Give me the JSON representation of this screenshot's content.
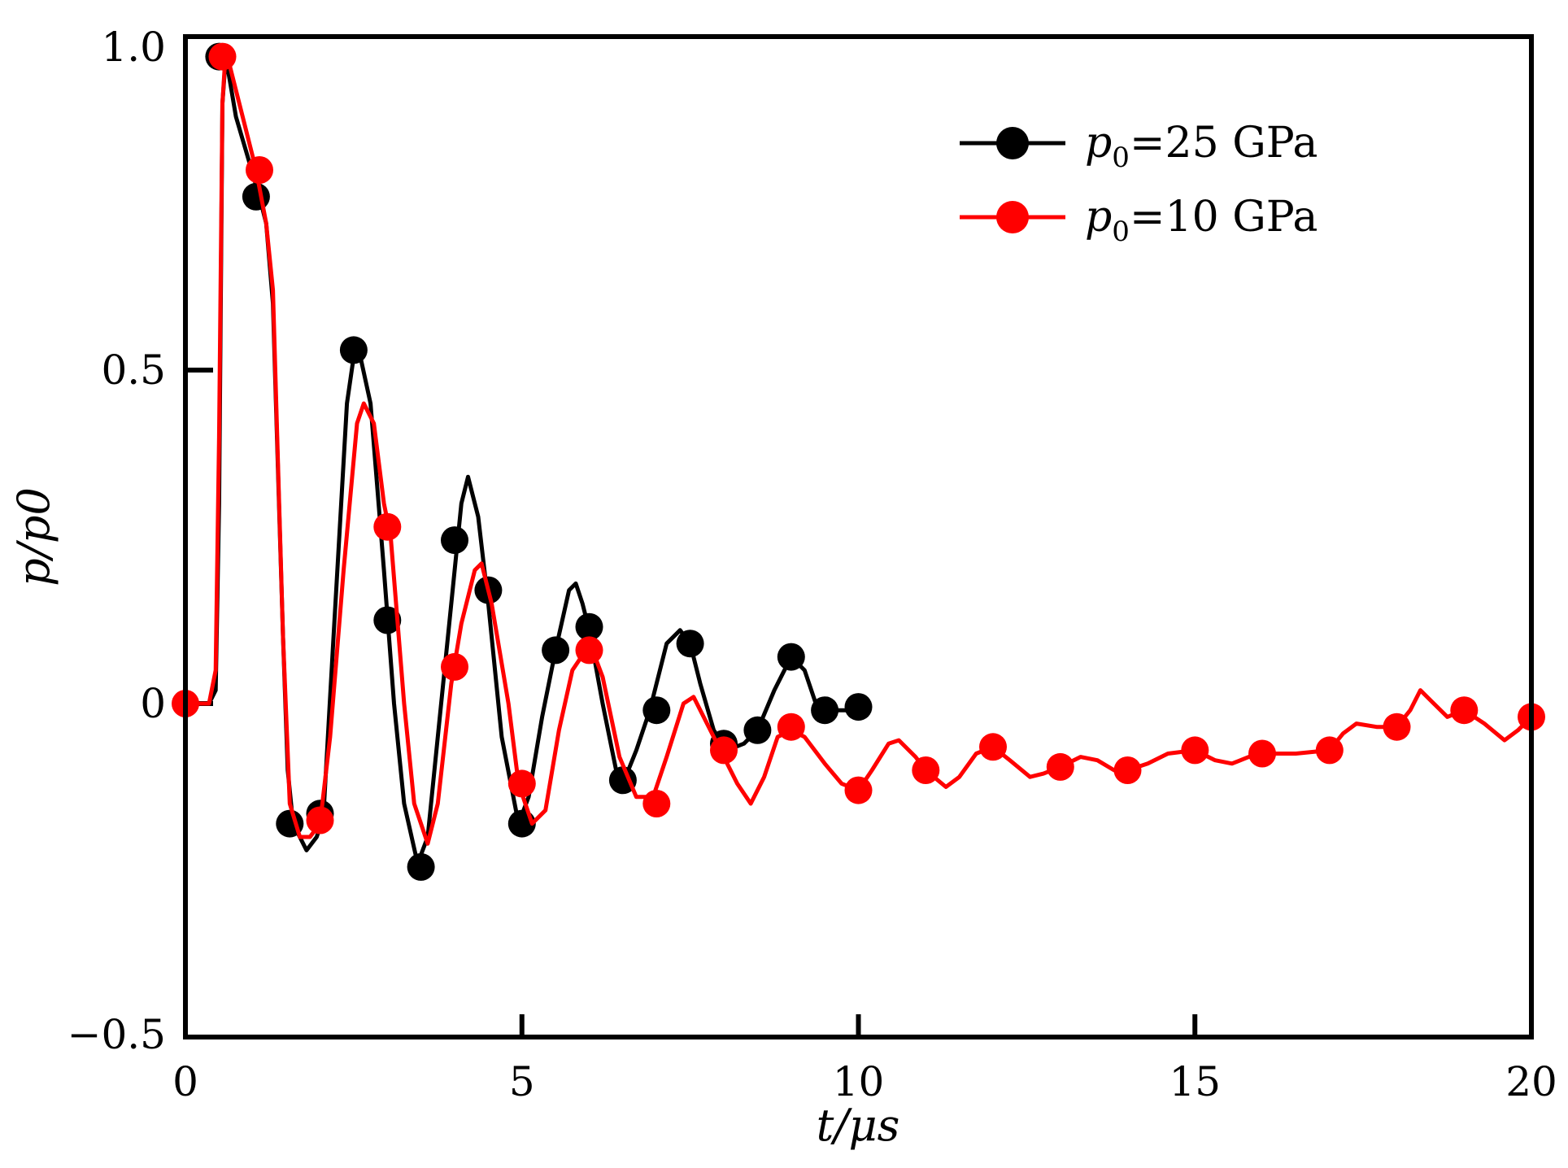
{
  "chart_data": {
    "type": "line",
    "xlabel": "t/μs",
    "ylabel": "p/p0",
    "xlim": [
      0,
      20
    ],
    "ylim": [
      -0.5,
      1.0
    ],
    "x_ticks": [
      0,
      5,
      10,
      15,
      20
    ],
    "x_tick_labels": [
      "0",
      "5",
      "10",
      "15",
      "20"
    ],
    "y_ticks": [
      -0.5,
      0,
      0.5,
      1.0
    ],
    "y_tick_labels": [
      "−0.5",
      "0",
      "0.5",
      "1.0"
    ],
    "legend_position": "top-right",
    "grid": false,
    "series": [
      {
        "name": "p0=25 GPa",
        "name_main": "p",
        "name_sub": "0",
        "name_rest": "=25 GPa",
        "color": "#000000",
        "line": [
          [
            0,
            0
          ],
          [
            0.35,
            0
          ],
          [
            0.45,
            0.02
          ],
          [
            0.5,
            0.3
          ],
          [
            0.55,
            0.9
          ],
          [
            0.6,
            0.97
          ],
          [
            0.75,
            0.88
          ],
          [
            1.1,
            0.76
          ],
          [
            1.2,
            0.72
          ],
          [
            1.3,
            0.6
          ],
          [
            1.45,
            0.1
          ],
          [
            1.52,
            -0.1
          ],
          [
            1.6,
            -0.18
          ],
          [
            1.8,
            -0.22
          ],
          [
            1.95,
            -0.2
          ],
          [
            2.05,
            -0.17
          ],
          [
            2.2,
            0.1
          ],
          [
            2.4,
            0.45
          ],
          [
            2.5,
            0.52
          ],
          [
            2.6,
            0.52
          ],
          [
            2.75,
            0.45
          ],
          [
            2.95,
            0.2
          ],
          [
            3.1,
            0.0
          ],
          [
            3.25,
            -0.15
          ],
          [
            3.45,
            -0.24
          ],
          [
            3.6,
            -0.2
          ],
          [
            3.75,
            -0.05
          ],
          [
            3.95,
            0.15
          ],
          [
            4.1,
            0.3
          ],
          [
            4.2,
            0.34
          ],
          [
            4.35,
            0.28
          ],
          [
            4.5,
            0.15
          ],
          [
            4.7,
            -0.05
          ],
          [
            4.95,
            -0.18
          ],
          [
            5.1,
            -0.14
          ],
          [
            5.3,
            -0.02
          ],
          [
            5.5,
            0.08
          ],
          [
            5.7,
            0.17
          ],
          [
            5.8,
            0.18
          ],
          [
            5.9,
            0.15
          ],
          [
            6.0,
            0.11
          ],
          [
            6.2,
            0.0
          ],
          [
            6.4,
            -0.1
          ],
          [
            6.5,
            -0.12
          ],
          [
            6.7,
            -0.07
          ],
          [
            6.9,
            -0.01
          ],
          [
            7.15,
            0.09
          ],
          [
            7.35,
            0.11
          ],
          [
            7.5,
            0.09
          ],
          [
            7.65,
            0.03
          ],
          [
            7.85,
            -0.04
          ],
          [
            8.05,
            -0.07
          ],
          [
            8.3,
            -0.06
          ],
          [
            8.5,
            -0.04
          ],
          [
            8.75,
            0.02
          ],
          [
            9.0,
            0.07
          ],
          [
            9.2,
            0.05
          ],
          [
            9.4,
            -0.01
          ],
          [
            9.6,
            -0.01
          ],
          [
            10.0,
            -0.01
          ]
        ],
        "markers": [
          [
            0.5,
            0.97
          ],
          [
            1.05,
            0.76
          ],
          [
            1.55,
            -0.18
          ],
          [
            2.0,
            -0.165
          ],
          [
            2.5,
            0.53
          ],
          [
            3.0,
            0.125
          ],
          [
            3.5,
            -0.245
          ],
          [
            4.0,
            0.245
          ],
          [
            4.5,
            0.17
          ],
          [
            5.0,
            -0.18
          ],
          [
            5.5,
            0.08
          ],
          [
            6.0,
            0.115
          ],
          [
            6.5,
            -0.115
          ],
          [
            7.0,
            -0.01
          ],
          [
            7.5,
            0.09
          ],
          [
            8.0,
            -0.06
          ],
          [
            8.5,
            -0.04
          ],
          [
            9.0,
            0.07
          ],
          [
            9.5,
            -0.01
          ],
          [
            10.0,
            -0.005
          ]
        ]
      },
      {
        "name": "p0=10 GPa",
        "name_main": "p",
        "name_sub": "0",
        "name_rest": "=10 GPa",
        "color": "#ff0000",
        "line": [
          [
            0,
            0
          ],
          [
            0.35,
            0
          ],
          [
            0.45,
            0.05
          ],
          [
            0.5,
            0.4
          ],
          [
            0.55,
            0.9
          ],
          [
            0.6,
            0.98
          ],
          [
            0.8,
            0.9
          ],
          [
            1.05,
            0.8
          ],
          [
            1.2,
            0.72
          ],
          [
            1.3,
            0.62
          ],
          [
            1.45,
            0.1
          ],
          [
            1.55,
            -0.15
          ],
          [
            1.7,
            -0.2
          ],
          [
            1.85,
            -0.2
          ],
          [
            2.0,
            -0.18
          ],
          [
            2.15,
            -0.05
          ],
          [
            2.35,
            0.2
          ],
          [
            2.55,
            0.42
          ],
          [
            2.65,
            0.45
          ],
          [
            2.8,
            0.42
          ],
          [
            2.95,
            0.3
          ],
          [
            3.05,
            0.25
          ],
          [
            3.25,
            0.0
          ],
          [
            3.4,
            -0.15
          ],
          [
            3.6,
            -0.21
          ],
          [
            3.75,
            -0.15
          ],
          [
            3.95,
            0.03
          ],
          [
            4.1,
            0.12
          ],
          [
            4.3,
            0.2
          ],
          [
            4.4,
            0.21
          ],
          [
            4.55,
            0.15
          ],
          [
            4.8,
            0.0
          ],
          [
            4.95,
            -0.12
          ],
          [
            5.15,
            -0.18
          ],
          [
            5.35,
            -0.16
          ],
          [
            5.55,
            -0.04
          ],
          [
            5.75,
            0.05
          ],
          [
            5.95,
            0.08
          ],
          [
            6.05,
            0.08
          ],
          [
            6.2,
            0.04
          ],
          [
            6.45,
            -0.08
          ],
          [
            6.7,
            -0.14
          ],
          [
            6.95,
            -0.14
          ],
          [
            7.15,
            -0.08
          ],
          [
            7.4,
            0.0
          ],
          [
            7.55,
            0.01
          ],
          [
            7.7,
            -0.02
          ],
          [
            7.95,
            -0.07
          ],
          [
            8.2,
            -0.12
          ],
          [
            8.4,
            -0.15
          ],
          [
            8.6,
            -0.11
          ],
          [
            8.8,
            -0.05
          ],
          [
            9.0,
            -0.04
          ],
          [
            9.2,
            -0.05
          ],
          [
            9.5,
            -0.09
          ],
          [
            9.75,
            -0.12
          ],
          [
            10.0,
            -0.13
          ],
          [
            10.2,
            -0.1
          ],
          [
            10.45,
            -0.06
          ],
          [
            10.6,
            -0.055
          ],
          [
            10.85,
            -0.08
          ],
          [
            11.0,
            -0.1
          ],
          [
            11.3,
            -0.125
          ],
          [
            11.5,
            -0.11
          ],
          [
            11.75,
            -0.075
          ],
          [
            12.0,
            -0.065
          ],
          [
            12.25,
            -0.085
          ],
          [
            12.55,
            -0.11
          ],
          [
            12.75,
            -0.105
          ],
          [
            13.0,
            -0.095
          ],
          [
            13.3,
            -0.08
          ],
          [
            13.55,
            -0.085
          ],
          [
            13.8,
            -0.1
          ],
          [
            14.0,
            -0.1
          ],
          [
            14.3,
            -0.09
          ],
          [
            14.6,
            -0.075
          ],
          [
            15.0,
            -0.07
          ],
          [
            15.3,
            -0.085
          ],
          [
            15.55,
            -0.09
          ],
          [
            15.8,
            -0.08
          ],
          [
            16.0,
            -0.075
          ],
          [
            16.5,
            -0.075
          ],
          [
            17.0,
            -0.07
          ],
          [
            17.2,
            -0.045
          ],
          [
            17.4,
            -0.03
          ],
          [
            17.7,
            -0.035
          ],
          [
            18.0,
            -0.035
          ],
          [
            18.2,
            -0.01
          ],
          [
            18.35,
            0.02
          ],
          [
            18.55,
            0.0
          ],
          [
            18.75,
            -0.02
          ],
          [
            19.0,
            -0.01
          ],
          [
            19.3,
            -0.03
          ],
          [
            19.6,
            -0.055
          ],
          [
            19.8,
            -0.04
          ],
          [
            20.0,
            -0.02
          ]
        ],
        "markers": [
          [
            0,
            0.0
          ],
          [
            0.55,
            0.97
          ],
          [
            1.1,
            0.8
          ],
          [
            2.0,
            -0.175
          ],
          [
            3.0,
            0.265
          ],
          [
            4.0,
            0.055
          ],
          [
            5.0,
            -0.12
          ],
          [
            6.0,
            0.08
          ],
          [
            7.0,
            -0.15
          ],
          [
            8.0,
            -0.07
          ],
          [
            9.0,
            -0.035
          ],
          [
            10.0,
            -0.13
          ],
          [
            11.0,
            -0.1
          ],
          [
            12.0,
            -0.065
          ],
          [
            13.0,
            -0.095
          ],
          [
            14.0,
            -0.1
          ],
          [
            15.0,
            -0.07
          ],
          [
            16.0,
            -0.075
          ],
          [
            17.0,
            -0.07
          ],
          [
            18.0,
            -0.035
          ],
          [
            19.0,
            -0.01
          ],
          [
            20.0,
            -0.02
          ]
        ]
      }
    ]
  }
}
